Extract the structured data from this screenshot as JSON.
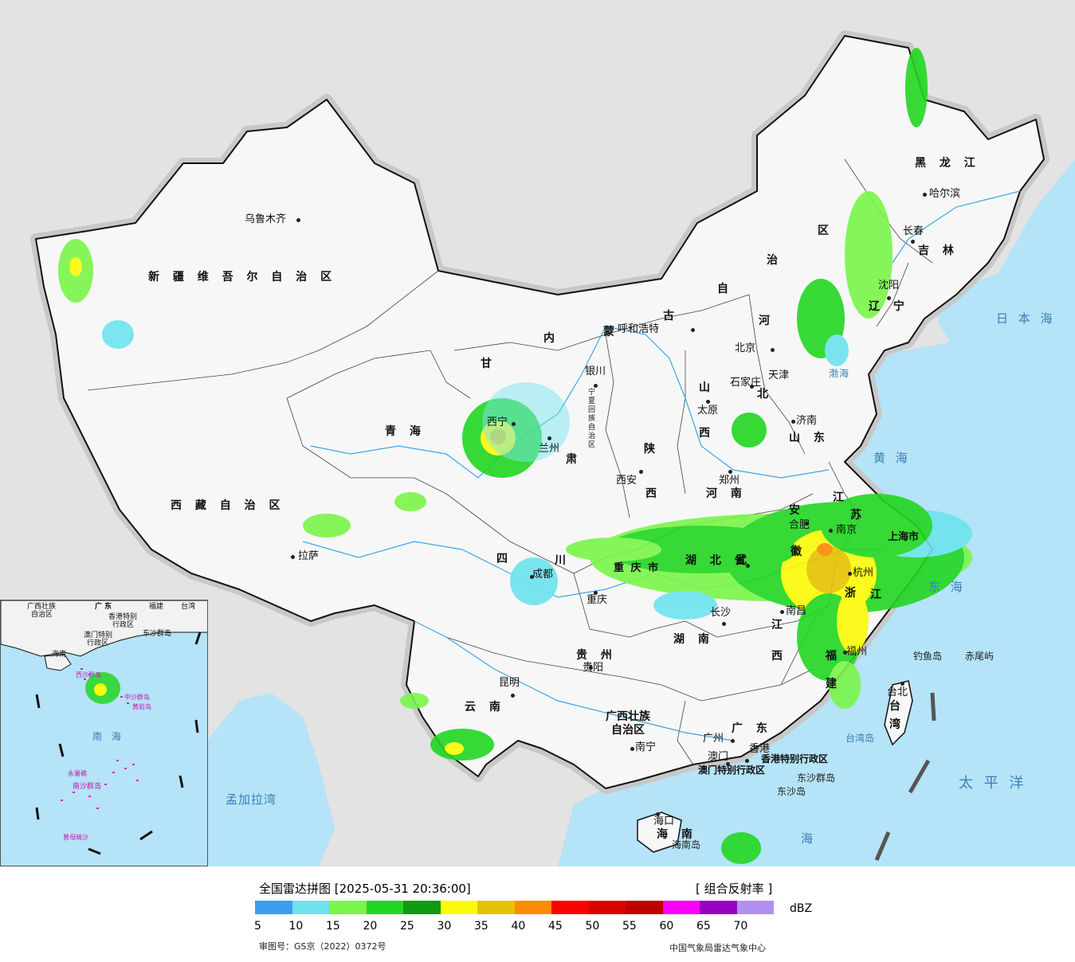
{
  "map": {
    "title": "全国雷达拼图 [2025-05-31 20:36:00]",
    "product": "[ 组合反射率 ]",
    "colors": {
      "land_outside": "#e3e3e3",
      "land_china": "#f7f7f7",
      "sea": "#b5e3f7",
      "border": "#111111",
      "halo": "#c8c8c8",
      "river": "#3aa7e8"
    },
    "provinces": {
      "xinjiang": "新 疆 维 吾 尔 自 治 区",
      "xizang": "西 藏 自 治 区",
      "qinghai": "青 海",
      "gansu_1": "甘",
      "gansu_2": "肃",
      "neimenggu_1": "内",
      "neimenggu_2": "蒙",
      "neimenggu_3": "古",
      "neimenggu_4": "自",
      "neimenggu_5": "治",
      "neimenggu_6": "区",
      "heilongjiang": "黑 龙 江",
      "jilin": "吉 林",
      "liaoning": "辽 宁",
      "hebei_1": "河",
      "hebei_2": "北",
      "shanxi_1": "山",
      "shanxi_2": "西",
      "shaanxi_1": "陕",
      "shaanxi_2": "西",
      "henan": "河 南",
      "shandong": "山 东",
      "sichuan_1": "四",
      "sichuan_2": "川",
      "chongqing": "重 庆 市",
      "hubei": "湖 北 省",
      "hunan": "湖 南",
      "jiangxi_1": "江",
      "jiangxi_2": "西",
      "anhui_1": "安",
      "anhui_2": "徽",
      "jiangsu_1": "江",
      "jiangsu_2": "苏",
      "zhejiang_1": "浙",
      "zhejiang_2": "江",
      "fujian_1": "福",
      "fujian_2": "建",
      "guizhou": "贵 州",
      "yunnan": "云 南",
      "guangxi_1": "广西壮族",
      "guangxi_2": "自治区",
      "guangdong": "广 东",
      "hainan": "海 南",
      "taiwan_1": "台",
      "taiwan_2": "湾",
      "ningxia": "宁夏回族自治区",
      "shanghai": "上海市",
      "tianjin": "天津",
      "hongkong": "香港特别行政区",
      "macau": "澳门特别行政区"
    },
    "cities": {
      "urumqi": "乌鲁木齐",
      "lhasa": "拉萨",
      "xining": "西宁",
      "lanzhou": "兰州",
      "yinchuan": "银川",
      "hohhot": "呼和浩特",
      "beijing": "北京",
      "shijiazhuang": "石家庄",
      "taiyuan": "太原",
      "jinan": "济南",
      "xian": "西安",
      "zhengzhou": "郑州",
      "hefei": "合肥",
      "nanjing": "南京",
      "wuhan": "武",
      "chengdu": "成都",
      "chongqing": "重庆",
      "changsha": "长沙",
      "nanchang": "南昌",
      "hangzhou": "杭州",
      "fuzhou": "福州",
      "guiyang": "贵阳",
      "kunming": "昆明",
      "nanning": "南宁",
      "guangzhou": "广州",
      "hongkong": "香港",
      "macau": "澳门",
      "haikou": "海口",
      "taipei": "台北",
      "harbin": "哈尔滨",
      "changchun": "长春",
      "shenyang": "沈阳"
    },
    "seas": {
      "sea_of_japan": "日 本 海",
      "yellow_sea": "黄 海",
      "east_china_sea": "东 海",
      "pacific": "太 平 洋",
      "south_china_sea_main": "海",
      "bay_of_bengal": "孟加拉湾",
      "bohai": "渤海"
    },
    "islands": {
      "diaoyu": "钓鱼岛",
      "chiwei": "赤尾屿",
      "taiwan_island": "台湾岛",
      "dongsha": "东沙群岛",
      "dongsha_2": "东沙岛",
      "hainan_island": "海南岛"
    },
    "inset": {
      "guangxi": "广西壮族",
      "guangxi_2": "自治区",
      "guangdong": "广 东",
      "fujian": "福建",
      "taiwan": "台湾",
      "hongkong": "香港特别",
      "hongkong_2": "行政区",
      "macau": "澳门特别",
      "macau_2": "行政区",
      "dongsha": "东沙群岛",
      "hainan": "海南",
      "xisha": "西沙群岛",
      "zhongsha": "中沙群岛",
      "huangyan": "黄岩岛",
      "nanhai": "南 海",
      "nansha": "南沙群岛",
      "yongshu": "永暑礁",
      "zengmu": "曾母暗沙"
    }
  },
  "legend": {
    "unit": "dBZ",
    "ticks": [
      "5",
      "10",
      "15",
      "20",
      "25",
      "30",
      "35",
      "40",
      "45",
      "50",
      "55",
      "60",
      "65",
      "70"
    ],
    "colors": [
      "#3d9df0",
      "#6de3ee",
      "#7af54a",
      "#22d622",
      "#0f9b0f",
      "#fbfb07",
      "#e6c300",
      "#fd8c00",
      "#fd0000",
      "#dc0000",
      "#c00000",
      "#fb00fb",
      "#9a00c1",
      "#b28ff0"
    ]
  },
  "footer": {
    "approval": "审图号：GS京（2022）0372号",
    "producer": "中国气象局雷达气象中心"
  }
}
